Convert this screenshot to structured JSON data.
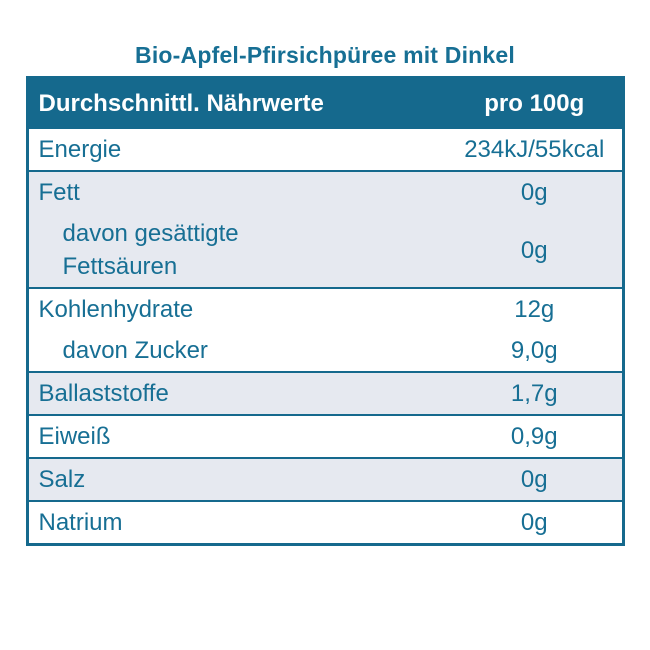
{
  "page": {
    "title": "Bio-Apfel-Pfirsichpüree mit Dinkel"
  },
  "colors": {
    "header_background": "#15698d",
    "text": "#176f94",
    "shaded_row_background": "#e6e9f0",
    "border": "#15698d"
  },
  "table": {
    "header": {
      "label": "Durchschnittl. Nährwerte",
      "unit": "pro 100g"
    },
    "rows": [
      {
        "label": "Energie",
        "value": "234kJ/55kcal"
      },
      {
        "label": "Fett",
        "value": "0g"
      },
      {
        "label": "davon gesättigte\nFettsäuren",
        "value": "0g"
      },
      {
        "label": "Kohlenhydrate",
        "value": "12g"
      },
      {
        "label": "davon Zucker",
        "value": "9,0g"
      },
      {
        "label": "Ballaststoffe",
        "value": "1,7g"
      },
      {
        "label": "Eiweiß",
        "value": "0,9g"
      },
      {
        "label": "Salz",
        "value": "0g"
      },
      {
        "label": "Natrium",
        "value": "0g"
      }
    ]
  }
}
